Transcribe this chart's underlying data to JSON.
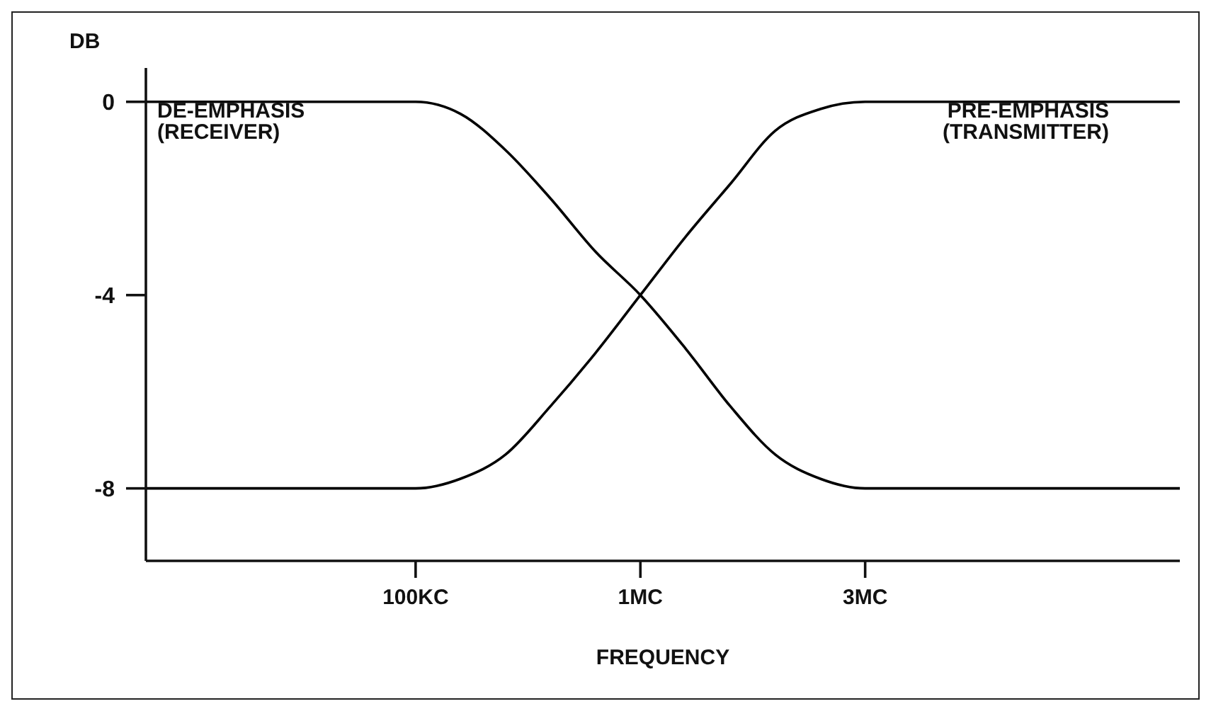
{
  "chart_data": {
    "type": "line",
    "xlabel": "FREQUENCY",
    "ylabel": "DB",
    "ylim": [
      -9.5,
      0.7
    ],
    "categories": [
      null,
      null,
      null,
      null,
      null,
      null,
      "100KC",
      null,
      null,
      null,
      null,
      "1MC",
      null,
      null,
      null,
      null,
      "3MC",
      null,
      null,
      null,
      null,
      null,
      null,
      null
    ],
    "yticks": [
      0,
      -4,
      -8
    ],
    "grid": false,
    "legend": false,
    "marker": "none",
    "line_style": "solid",
    "series": [
      {
        "name": "DE-EMPHASIS (RECEIVER)",
        "color": "#000000",
        "values": [
          0,
          0,
          0,
          0,
          0,
          0,
          0,
          -0.25,
          -1.0,
          -2.0,
          -3.1,
          -4,
          -5.1,
          -6.3,
          -7.3,
          -7.8,
          -8,
          -8,
          -8,
          -8,
          -8,
          -8,
          -8,
          -8
        ]
      },
      {
        "name": "PRE-EMPHASIS (TRANSMITTER)",
        "color": "#000000",
        "values": [
          -8,
          -8,
          -8,
          -8,
          -8,
          -8,
          -8,
          -7.8,
          -7.3,
          -6.3,
          -5.2,
          -4,
          -2.8,
          -1.7,
          -0.6,
          -0.15,
          0,
          0,
          0,
          0,
          0,
          0,
          0,
          0
        ]
      }
    ]
  }
}
